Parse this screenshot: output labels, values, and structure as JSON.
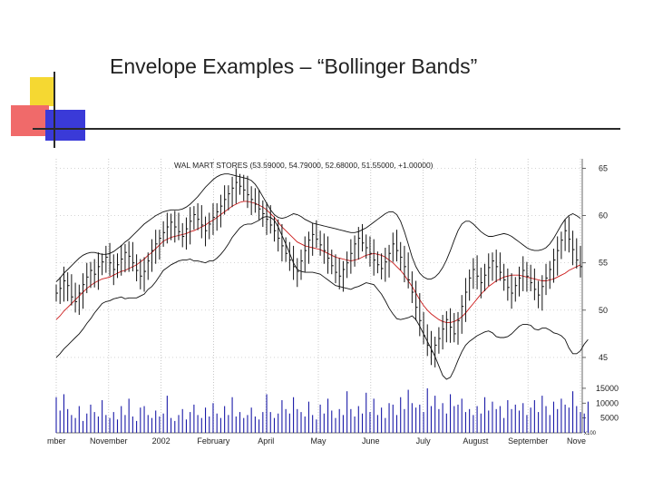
{
  "slide": {
    "title": "Envelope Examples – “Bollinger Bands”",
    "colors": {
      "deco_yellow": "#f5d832",
      "deco_red": "#f06a6a",
      "deco_blue": "#3a3ad8",
      "rule": "#2a2a2a"
    }
  },
  "chart_data": {
    "type": "line",
    "title": "WAL MART STORES (53.59000, 54.79000, 52.68000, 51.55000, +1.00000)",
    "x_tick_labels": [
      "mber",
      "November",
      "2002",
      "February",
      "April",
      "May",
      "June",
      "July",
      "August",
      "September",
      "Nove"
    ],
    "price_axis": {
      "ticks": [
        45,
        50,
        55,
        60,
        65
      ],
      "tick_labels": [
        "45",
        "50",
        "55",
        "60",
        "65"
      ],
      "ylim": [
        42.5,
        66
      ]
    },
    "volume_axis": {
      "ticks": [
        5000,
        10000,
        15000
      ],
      "tick_labels": [
        "5000",
        "10000",
        "15000"
      ],
      "multiplier_label": "x100",
      "ylim": [
        0,
        16500
      ]
    },
    "grid": true,
    "colors": {
      "price": "#111111",
      "moving_average": "#cc1a1a",
      "bands": "#111111",
      "volume": "#1a1aa8",
      "grid": "#bbbbbb"
    },
    "series": [
      {
        "role": "close",
        "values": [
          51.8,
          52.3,
          53.1,
          52.6,
          51.4,
          50.9,
          51.8,
          52.7,
          53.5,
          54.2,
          53.8,
          54.6,
          55.1,
          55.6,
          55.0,
          54.3,
          54.8,
          55.4,
          56.1,
          55.7,
          55.0,
          54.2,
          53.6,
          54.1,
          55.2,
          56.3,
          57.0,
          57.6,
          58.2,
          58.8,
          59.3,
          58.8,
          58.3,
          57.8,
          58.6,
          59.4,
          60.1,
          59.6,
          59.0,
          58.4,
          59.1,
          59.8,
          60.4,
          61.0,
          61.7,
          62.3,
          62.9,
          63.5,
          63.1,
          62.7,
          62.2,
          61.7,
          61.2,
          60.7,
          60.2,
          59.6,
          59.0,
          58.4,
          57.6,
          56.8,
          56.0,
          55.3,
          54.6,
          54.1,
          55.2,
          56.3,
          57.4,
          58.0,
          57.5,
          56.9,
          56.3,
          55.5,
          54.7,
          54.0,
          53.6,
          54.3,
          55.0,
          56.0,
          57.0,
          57.6,
          57.1,
          56.6,
          56.0,
          55.3,
          54.8,
          54.4,
          55.1,
          56.0,
          57.0,
          56.3,
          55.6,
          54.6,
          53.2,
          51.9,
          50.3,
          48.9,
          47.3,
          46.3,
          45.6,
          46.3,
          47.0,
          48.0,
          49.0,
          48.2,
          47.5,
          48.9,
          50.4,
          51.9,
          53.4,
          54.3,
          53.6,
          52.9,
          53.7,
          54.5,
          55.2,
          54.6,
          54.0,
          53.2,
          52.4,
          51.8,
          52.6,
          53.4,
          54.2,
          53.6,
          52.9,
          52.2,
          51.6,
          52.5,
          53.4,
          54.3,
          55.3,
          56.3,
          57.4,
          58.4,
          57.5,
          56.4,
          55.3,
          54.6
        ]
      },
      {
        "role": "moving_average",
        "values": [
          49.0,
          49.4,
          49.9,
          50.3,
          50.7,
          51.1,
          51.5,
          51.9,
          52.3,
          52.6,
          52.9,
          53.1,
          53.3,
          53.4,
          53.5,
          53.7,
          53.9,
          54.1,
          54.2,
          54.4,
          54.6,
          54.8,
          55.1,
          55.4,
          55.8,
          56.1,
          56.5,
          56.9,
          57.3,
          57.5,
          57.7,
          57.8,
          57.9,
          58.0,
          58.1,
          58.3,
          58.4,
          58.6,
          58.8,
          59.0,
          59.3,
          59.5,
          59.8,
          60.1,
          60.4,
          60.7,
          61.0,
          61.2,
          61.4,
          61.5,
          61.5,
          61.4,
          61.3,
          61.1,
          60.9,
          60.6,
          60.2,
          59.8,
          59.3,
          58.8,
          58.4,
          58.0,
          57.6,
          57.2,
          57.0,
          56.8,
          56.7,
          56.6,
          56.5,
          56.4,
          56.2,
          56.0,
          55.8,
          55.6,
          55.5,
          55.4,
          55.3,
          55.2,
          55.3,
          55.4,
          55.6,
          55.8,
          55.9,
          56.0,
          55.9,
          55.8,
          55.6,
          55.3,
          55.0,
          54.6,
          54.2,
          53.7,
          53.1,
          52.5,
          51.8,
          51.1,
          50.5,
          50.0,
          49.6,
          49.3,
          49.0,
          48.8,
          48.7,
          48.7,
          48.8,
          49.0,
          49.3,
          49.7,
          50.2,
          50.7,
          51.2,
          51.7,
          52.1,
          52.5,
          52.8,
          53.1,
          53.3,
          53.5,
          53.6,
          53.7,
          53.7,
          53.7,
          53.6,
          53.5,
          53.4,
          53.3,
          53.2,
          53.1,
          53.1,
          53.2,
          53.3,
          53.5,
          53.7,
          53.9,
          54.2,
          54.4,
          54.6,
          54.8
        ]
      },
      {
        "role": "upper_band",
        "values": [
          53.0,
          53.4,
          53.9,
          54.3,
          54.7,
          55.1,
          55.5,
          55.8,
          56.0,
          56.1,
          56.1,
          56.0,
          55.9,
          55.9,
          56.0,
          56.2,
          56.5,
          56.8,
          57.2,
          57.5,
          57.9,
          58.3,
          58.7,
          59.1,
          59.4,
          59.7,
          60.0,
          60.2,
          60.4,
          60.5,
          60.6,
          60.6,
          60.6,
          60.7,
          60.9,
          61.2,
          61.6,
          62.0,
          62.5,
          63.0,
          63.4,
          63.8,
          64.1,
          64.3,
          64.4,
          64.4,
          64.3,
          64.2,
          64.1,
          64.0,
          63.9,
          63.7,
          63.3,
          62.7,
          62.0,
          61.3,
          60.6,
          60.1,
          59.8,
          59.7,
          59.8,
          60.0,
          60.2,
          60.1,
          59.9,
          59.6,
          59.4,
          59.2,
          59.1,
          59.0,
          58.9,
          58.8,
          58.7,
          58.6,
          58.5,
          58.4,
          58.3,
          58.2,
          58.2,
          58.3,
          58.5,
          58.7,
          59.0,
          59.3,
          59.6,
          59.9,
          60.2,
          60.4,
          60.4,
          60.1,
          59.4,
          58.3,
          57.0,
          55.6,
          54.6,
          53.9,
          53.5,
          53.3,
          53.3,
          53.5,
          53.9,
          54.5,
          55.3,
          56.3,
          57.4,
          58.4,
          59.1,
          59.4,
          59.4,
          59.1,
          58.7,
          58.3,
          58.0,
          57.8,
          57.8,
          57.9,
          58.0,
          58.1,
          58.0,
          57.8,
          57.5,
          57.2,
          56.9,
          56.6,
          56.4,
          56.3,
          56.3,
          56.4,
          56.6,
          57.0,
          57.6,
          58.3,
          59.0,
          59.6,
          60.0,
          60.2,
          60.0,
          59.7
        ]
      },
      {
        "role": "lower_band",
        "values": [
          45.0,
          45.4,
          45.9,
          46.3,
          46.7,
          47.1,
          47.5,
          48.0,
          48.6,
          49.1,
          49.7,
          50.2,
          50.7,
          50.9,
          51.0,
          51.2,
          51.3,
          51.4,
          51.2,
          51.3,
          51.3,
          51.3,
          51.5,
          51.7,
          52.2,
          52.5,
          53.0,
          53.6,
          54.2,
          54.5,
          54.8,
          55.0,
          55.2,
          55.3,
          55.3,
          55.4,
          55.2,
          55.2,
          55.1,
          55.0,
          55.2,
          55.2,
          55.5,
          55.9,
          56.4,
          57.0,
          57.7,
          58.2,
          58.7,
          59.0,
          59.1,
          59.1,
          59.3,
          59.5,
          59.8,
          59.9,
          59.8,
          59.5,
          58.8,
          57.9,
          57.0,
          56.0,
          55.0,
          54.3,
          54.1,
          54.0,
          54.0,
          54.0,
          53.9,
          53.8,
          53.5,
          53.2,
          52.9,
          52.6,
          52.5,
          52.4,
          52.3,
          52.2,
          52.4,
          52.5,
          52.7,
          52.9,
          52.8,
          52.7,
          52.2,
          51.7,
          51.0,
          50.2,
          49.6,
          49.1,
          49.0,
          49.1,
          49.2,
          49.4,
          49.0,
          48.3,
          47.5,
          46.7,
          45.9,
          45.1,
          44.1,
          43.1,
          42.7,
          42.9,
          43.7,
          44.7,
          45.6,
          46.3,
          46.7,
          47.0,
          47.3,
          47.5,
          47.7,
          47.8,
          47.6,
          47.2,
          47.1,
          47.1,
          47.2,
          47.5,
          47.9,
          48.3,
          48.5,
          48.5,
          48.4,
          48.0,
          47.9,
          48.1,
          48.1,
          47.9,
          47.6,
          47.5,
          47.3,
          46.9,
          46.0,
          45.4,
          45.4,
          45.7,
          46.4,
          46.9
        ]
      },
      {
        "role": "volume",
        "values": [
          12000,
          7500,
          13000,
          8000,
          6000,
          5000,
          9000,
          4000,
          6500,
          9500,
          7000,
          5500,
          11000,
          6000,
          5000,
          7000,
          4500,
          9000,
          6000,
          11500,
          5500,
          4000,
          8500,
          9000,
          6000,
          5000,
          7500,
          5500,
          6500,
          12500,
          5000,
          4000,
          6000,
          8000,
          4500,
          7000,
          9500,
          6000,
          5000,
          8500,
          5500,
          10000,
          6500,
          5000,
          9000,
          6000,
          12000,
          5500,
          7000,
          5000,
          6000,
          8500,
          5500,
          4500,
          7000,
          13000,
          7000,
          5000,
          6500,
          11000,
          8000,
          6500,
          12000,
          8000,
          7000,
          5500,
          10500,
          6000,
          4500,
          9500,
          6500,
          11500,
          7500,
          5000,
          8000,
          6000,
          14000,
          8000,
          5500,
          9000,
          6500,
          13500,
          7000,
          11500,
          6000,
          8500,
          5000,
          10000,
          9500,
          6000,
          12000,
          8000,
          14500,
          10000,
          8500,
          9500,
          7000,
          15000,
          9000,
          12500,
          8000,
          10000,
          6500,
          13000,
          9000,
          9500,
          11500,
          7000,
          8000,
          6000,
          9000,
          6500,
          12000,
          7500,
          10500,
          8000,
          9000,
          5000,
          11000,
          8000,
          9500,
          7500,
          10000,
          6000,
          8500,
          11000,
          7000,
          12500,
          9000,
          6000,
          10500,
          8000,
          11500,
          9500,
          8500,
          14000,
          9000,
          7000,
          6500,
          10500
        ]
      }
    ]
  }
}
